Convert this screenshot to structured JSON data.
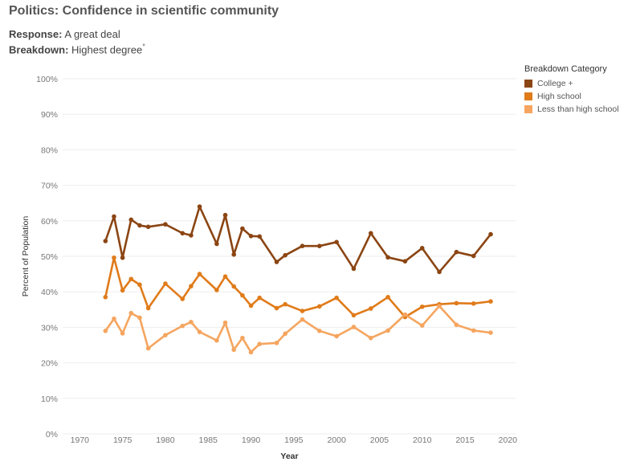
{
  "header": {
    "title": "Politics: Confidence in scientific community",
    "response_label": "Response:",
    "response_value": "A great deal",
    "breakdown_label": "Breakdown:",
    "breakdown_value": "Highest degree",
    "breakdown_marker": "°"
  },
  "legend": {
    "title": "Breakdown Category"
  },
  "chart_data": {
    "type": "line",
    "xlabel": "Year",
    "ylabel": "Percent of Population",
    "xlim": [
      1968,
      2021
    ],
    "ylim": [
      0,
      100
    ],
    "x_ticks": [
      1970,
      1975,
      1980,
      1985,
      1990,
      1995,
      2000,
      2005,
      2010,
      2015,
      2020
    ],
    "y_ticks": [
      0,
      10,
      20,
      30,
      40,
      50,
      60,
      70,
      80,
      90,
      100
    ],
    "y_tick_suffix": "%",
    "grid": true,
    "legend_position": "top-right",
    "series": [
      {
        "name": "College +",
        "color": "#8B4513",
        "x": [
          1973,
          1974,
          1975,
          1976,
          1977,
          1978,
          1980,
          1982,
          1983,
          1984,
          1986,
          1987,
          1988,
          1989,
          1990,
          1991,
          1993,
          1994,
          1996,
          1998,
          2000,
          2002,
          2004,
          2006,
          2008,
          2010,
          2012,
          2014,
          2016,
          2018
        ],
        "values": [
          54.3,
          61.2,
          49.6,
          60.3,
          58.7,
          58.3,
          59.0,
          56.5,
          55.9,
          64.0,
          53.5,
          61.6,
          50.5,
          57.8,
          55.7,
          55.6,
          48.4,
          50.3,
          52.9,
          52.9,
          54.0,
          46.5,
          56.5,
          49.7,
          48.6,
          52.3,
          45.6,
          51.2,
          50.1,
          56.2
        ]
      },
      {
        "name": "High school",
        "color": "#E07B1A",
        "x": [
          1973,
          1974,
          1975,
          1976,
          1977,
          1978,
          1980,
          1982,
          1983,
          1984,
          1986,
          1987,
          1988,
          1989,
          1990,
          1991,
          1993,
          1994,
          1996,
          1998,
          2000,
          2002,
          2004,
          2006,
          2008,
          2010,
          2012,
          2014,
          2016,
          2018
        ],
        "values": [
          38.5,
          49.6,
          40.4,
          43.6,
          42.0,
          35.4,
          42.3,
          38.0,
          41.6,
          45.0,
          40.5,
          44.3,
          41.5,
          39.0,
          36.1,
          38.3,
          35.4,
          36.5,
          34.6,
          35.9,
          38.3,
          33.4,
          35.3,
          38.5,
          32.9,
          35.8,
          36.5,
          36.8,
          36.7,
          37.3
        ]
      },
      {
        "name": "Less than high school",
        "color": "#F5A55F",
        "x": [
          1973,
          1974,
          1975,
          1976,
          1977,
          1978,
          1980,
          1982,
          1983,
          1984,
          1986,
          1987,
          1988,
          1989,
          1990,
          1991,
          1993,
          1994,
          1996,
          1998,
          2000,
          2002,
          2004,
          2006,
          2008,
          2010,
          2012,
          2014,
          2016,
          2018
        ],
        "values": [
          29.0,
          32.4,
          28.3,
          34.0,
          32.7,
          24.1,
          27.8,
          30.4,
          31.5,
          28.7,
          26.3,
          31.3,
          23.7,
          27.0,
          23.0,
          25.3,
          25.6,
          28.2,
          32.2,
          29.0,
          27.5,
          30.1,
          27.0,
          29.1,
          33.6,
          30.5,
          36.0,
          30.7,
          29.1,
          28.5
        ]
      }
    ]
  }
}
